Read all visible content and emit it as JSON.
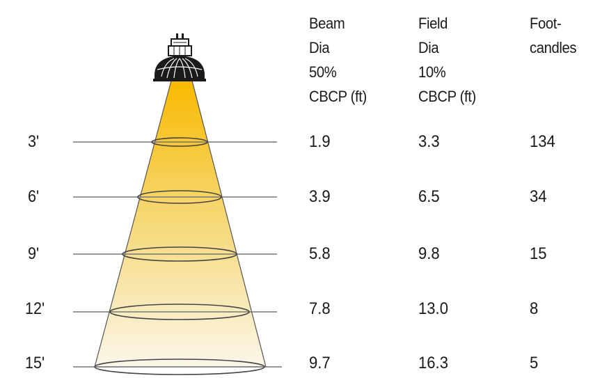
{
  "headers": {
    "beam": "Beam\nDia\n50%\nCBCP (ft)",
    "field": "Field\nDia\n10%\nCBCP (ft)",
    "footcandles": "Foot-\ncandles"
  },
  "rows": [
    {
      "distance": "3'",
      "beam": "1.9",
      "field": "3.3",
      "fc": "134"
    },
    {
      "distance": "6'",
      "beam": "3.9",
      "field": "6.5",
      "fc": "34"
    },
    {
      "distance": "9'",
      "beam": "5.8",
      "field": "9.8",
      "fc": "15"
    },
    {
      "distance": "12'",
      "beam": "7.8",
      "field": "13.0",
      "fc": "8"
    },
    {
      "distance": "15'",
      "beam": "9.7",
      "field": "16.3",
      "fc": "5"
    }
  ],
  "colors": {
    "beam_top": "#f9b900",
    "beam_bottom": "#fbf6ea",
    "outline": "#555555",
    "lamp": "#1a1a1a"
  },
  "icons": {
    "lamp": "mr16-lamp-icon"
  }
}
